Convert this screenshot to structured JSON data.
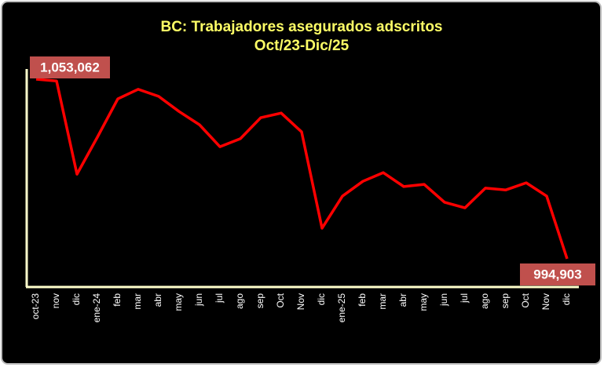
{
  "chart_data": {
    "type": "line",
    "title": "BC: Trabajadores asegurados adscritos",
    "subtitle": "Oct/23-Dic/25",
    "categories": [
      "oct-23",
      "nov",
      "dic",
      "ene-24",
      "feb",
      "mar",
      "abr",
      "may",
      "jun",
      "jul",
      "ago",
      "sep",
      "Oct",
      "Nov",
      "dic",
      "ene-25",
      "feb",
      "mar",
      "abr",
      "may",
      "jun",
      "jul",
      "ago",
      "sep",
      "Oct",
      "Nov",
      "dic"
    ],
    "series": [
      {
        "name": "Trabajadores asegurados",
        "color": "#ff0000",
        "values": [
          1053062,
          1052500,
          1022300,
          1034300,
          1046700,
          1049800,
          1047500,
          1042600,
          1038300,
          1031200,
          1033800,
          1040600,
          1042100,
          1036000,
          1004800,
          1015200,
          1020000,
          1022800,
          1018300,
          1019000,
          1013200,
          1011400,
          1017800,
          1017200,
          1019500,
          1015200,
          994903
        ],
        "value_labels": [
          "1,053,062",
          null,
          null,
          null,
          null,
          null,
          null,
          null,
          null,
          null,
          null,
          null,
          null,
          null,
          null,
          null,
          null,
          null,
          null,
          null,
          null,
          null,
          null,
          null,
          null,
          null,
          "994,903"
        ]
      }
    ]
  }
}
